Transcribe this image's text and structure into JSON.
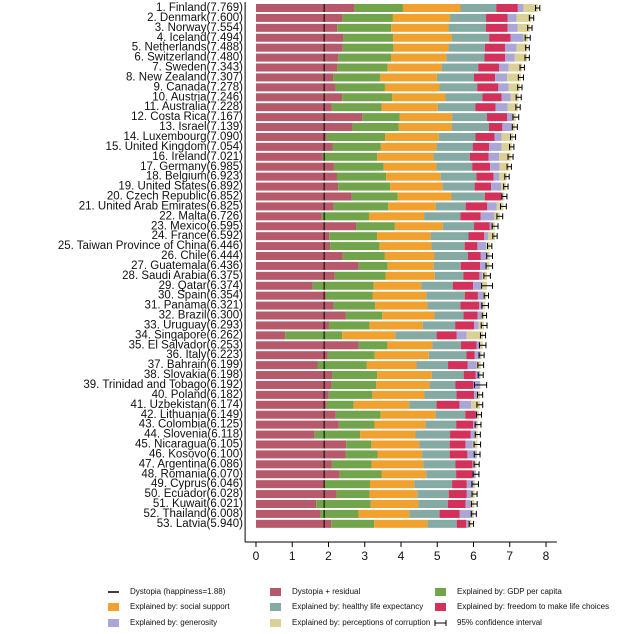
{
  "chart_data": {
    "type": "bar",
    "orientation": "horizontal",
    "stacked": true,
    "categories": [
      "1. Finland(7.769)",
      "2. Denmark(7.600)",
      "3. Norway(7.554)",
      "4. Iceland(7.494)",
      "5. Netherlands(7.488)",
      "6. Switzerland(7.480)",
      "7. Sweden(7.343)",
      "8. New Zealand(7.307)",
      "9. Canada(7.278)",
      "10. Austria(7.246)",
      "11. Australia(7.228)",
      "12. Costa Rica(7.167)",
      "13. Israel(7.139)",
      "14. Luxembourg(7.090)",
      "15. United Kingdom(7.054)",
      "16. Ireland(7.021)",
      "17. Germany(6.985)",
      "18. Belgium(6.923)",
      "19. United States(6.892)",
      "20. Czech Republic(6.852)",
      "21. United Arab Emirates(6.825)",
      "22. Malta(6.726)",
      "23. Mexico(6.595)",
      "24. France(6.592)",
      "25. Taiwan Province of China(6.446)",
      "26. Chile(6.444)",
      "27. Guatemala(6.436)",
      "28. Saudi Arabia(6.375)",
      "29. Qatar(6.374)",
      "30. Spain(6.354)",
      "31. Panama(6.321)",
      "32. Brazil(6.300)",
      "33. Uruguay(6.293)",
      "34. Singapore(6.262)",
      "35. El Salvador(6.253)",
      "36. Italy(6.223)",
      "37. Bahrain(6.199)",
      "38. Slovakia(6.198)",
      "39. Trinidad and Tobago(6.192)",
      "40. Poland(6.182)",
      "41. Uzbekistan(6.174)",
      "42. Lithuania(6.149)",
      "43. Colombia(6.125)",
      "44. Slovenia(6.118)",
      "45. Nicaragua(6.105)",
      "46. Kosovo(6.100)",
      "47. Argentina(6.086)",
      "48. Romania(6.070)",
      "49. Cyprus(6.046)",
      "50. Ecuador(6.028)",
      "51. Kuwait(6.021)",
      "52. Thailand(6.008)",
      "53. Latvia(5.940)"
    ],
    "series": [
      {
        "name": "Dystopia + residual",
        "color": "#b5596b",
        "values": [
          2.714,
          2.394,
          2.241,
          2.401,
          2.394,
          2.272,
          2.246,
          2.126,
          2.192,
          2.377,
          2.093,
          2.934,
          2.665,
          1.954,
          2.111,
          1.846,
          2.15,
          2.234,
          2.266,
          2.637,
          2.145,
          1.817,
          2.761,
          2.021,
          2.044,
          2.396,
          2.833,
          2.169,
          1.564,
          1.928,
          2.141,
          2.48,
          2.013,
          0.806,
          2.831,
          1.983,
          1.697,
          2.098,
          2.081,
          2.004,
          1.951,
          2.202,
          2.286,
          1.619,
          2.489,
          2.471,
          2.094,
          2.301,
          1.881,
          2.225,
          1.662,
          1.777,
          2.073
        ]
      },
      {
        "name": "Explained by: GDP per capita",
        "color": "#72a44c",
        "values": [
          1.34,
          1.383,
          1.488,
          1.38,
          1.396,
          1.452,
          1.387,
          1.303,
          1.365,
          1.376,
          1.372,
          1.034,
          1.276,
          1.609,
          1.333,
          1.499,
          1.373,
          1.356,
          1.433,
          1.269,
          1.503,
          1.3,
          1.07,
          1.324,
          1.368,
          1.159,
          0.8,
          1.403,
          1.684,
          1.286,
          1.149,
          1.004,
          1.124,
          1.572,
          0.794,
          1.294,
          1.362,
          1.246,
          1.231,
          1.206,
          0.745,
          1.238,
          0.985,
          1.258,
          0.694,
          0.882,
          1.092,
          1.162,
          1.263,
          0.912,
          1.5,
          1.05,
          1.187
        ]
      },
      {
        "name": "Explained by: social support",
        "color": "#f0a12e",
        "values": [
          1.587,
          1.573,
          1.582,
          1.624,
          1.522,
          1.526,
          1.487,
          1.557,
          1.505,
          1.475,
          1.548,
          1.441,
          1.455,
          1.479,
          1.538,
          1.553,
          1.454,
          1.504,
          1.457,
          1.487,
          1.31,
          1.52,
          1.323,
          1.472,
          1.43,
          1.369,
          1.269,
          1.357,
          1.313,
          1.484,
          1.442,
          1.439,
          1.465,
          1.463,
          1.242,
          1.488,
          1.368,
          1.504,
          1.477,
          1.438,
          1.529,
          1.515,
          1.41,
          1.523,
          1.325,
          1.232,
          1.432,
          1.232,
          1.223,
          1.312,
          1.319,
          1.409,
          1.465
        ]
      },
      {
        "name": "Explained by: healthy life expectancy",
        "color": "#85aaa3",
        "values": [
          0.986,
          0.996,
          1.028,
          1.026,
          0.999,
          1.052,
          1.009,
          1.026,
          1.039,
          1.016,
          1.036,
          0.963,
          1.029,
          1.012,
          0.996,
          0.999,
          0.987,
          0.986,
          0.874,
          0.92,
          0.825,
          0.999,
          0.861,
          1.045,
          0.914,
          0.92,
          0.746,
          0.795,
          0.871,
          1.062,
          0.91,
          0.802,
          0.891,
          1.141,
          0.789,
          1.039,
          0.871,
          0.881,
          0.713,
          0.884,
          0.756,
          0.818,
          0.841,
          0.953,
          0.835,
          0.758,
          0.881,
          0.825,
          1.042,
          0.868,
          0.808,
          0.828,
          0.812
        ]
      },
      {
        "name": "Explained by: freedom to make life choices",
        "color": "#d3305a",
        "values": [
          0.596,
          0.592,
          0.603,
          0.591,
          0.557,
          0.572,
          0.574,
          0.585,
          0.584,
          0.532,
          0.557,
          0.558,
          0.371,
          0.526,
          0.45,
          0.516,
          0.495,
          0.473,
          0.454,
          0.457,
          0.598,
          0.564,
          0.433,
          0.436,
          0.351,
          0.357,
          0.535,
          0.439,
          0.555,
          0.362,
          0.516,
          0.39,
          0.523,
          0.556,
          0.43,
          0.231,
          0.536,
          0.334,
          0.489,
          0.483,
          0.631,
          0.291,
          0.47,
          0.564,
          0.435,
          0.489,
          0.471,
          0.462,
          0.406,
          0.498,
          0.493,
          0.557,
          0.264
        ]
      },
      {
        "name": "Explained by: generosity",
        "color": "#aaa6d8",
        "values": [
          0.153,
          0.252,
          0.271,
          0.354,
          0.322,
          0.263,
          0.267,
          0.33,
          0.285,
          0.244,
          0.332,
          0.144,
          0.261,
          0.194,
          0.348,
          0.298,
          0.261,
          0.16,
          0.28,
          0.046,
          0.262,
          0.375,
          0.074,
          0.111,
          0.242,
          0.187,
          0.175,
          0.08,
          0.22,
          0.153,
          0.109,
          0.099,
          0.127,
          0.271,
          0.093,
          0.158,
          0.255,
          0.121,
          0.185,
          0.117,
          0.322,
          0.043,
          0.099,
          0.144,
          0.2,
          0.262,
          0.066,
          0.083,
          0.19,
          0.126,
          0.142,
          0.359,
          0.075
        ]
      },
      {
        "name": "Explained by: perceptions of corruption",
        "color": "#dbd196",
        "values": [
          0.393,
          0.41,
          0.341,
          0.118,
          0.298,
          0.343,
          0.373,
          0.38,
          0.308,
          0.226,
          0.29,
          0.093,
          0.082,
          0.316,
          0.278,
          0.31,
          0.265,
          0.21,
          0.128,
          0.036,
          0.182,
          0.151,
          0.073,
          0.183,
          0.097,
          0.056,
          0.078,
          0.132,
          0.167,
          0.079,
          0.054,
          0.086,
          0.15,
          0.453,
          0.074,
          0.03,
          0.11,
          0.014,
          0.016,
          0.05,
          0.24,
          0.042,
          0.034,
          0.057,
          0.127,
          0.006,
          0.05,
          0.005,
          0.041,
          0.087,
          0.097,
          0.028,
          0.064
        ]
      }
    ],
    "errors": [
      0.06,
      0.06,
      0.06,
      0.07,
      0.05,
      0.06,
      0.06,
      0.07,
      0.06,
      0.07,
      0.06,
      0.08,
      0.07,
      0.07,
      0.06,
      0.07,
      0.06,
      0.06,
      0.06,
      0.07,
      0.08,
      0.08,
      0.08,
      0.06,
      0.06,
      0.08,
      0.09,
      0.09,
      0.15,
      0.06,
      0.09,
      0.06,
      0.08,
      0.07,
      0.09,
      0.07,
      0.08,
      0.07,
      0.17,
      0.07,
      0.08,
      0.07,
      0.08,
      0.07,
      0.09,
      0.08,
      0.07,
      0.08,
      0.09,
      0.07,
      0.08,
      0.07,
      0.06
    ],
    "reference_line": {
      "value": 1.88,
      "label": "Dystopia (happiness=1.88)"
    },
    "error_label": "95% confidence interval",
    "xlim": [
      -0.3,
      8.3
    ],
    "xticks": [
      0,
      1,
      2,
      3,
      4,
      5,
      6,
      7,
      8
    ],
    "legend": "bottom"
  }
}
